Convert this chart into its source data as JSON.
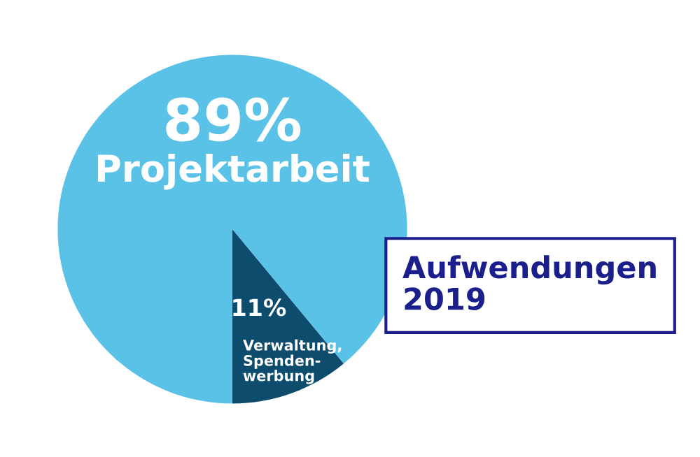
{
  "chart_data": {
    "type": "pie",
    "title": "Aufwendungen\n2019",
    "categories": [
      "Verwaltung,\nSpenden-\nwerbung",
      "Projektarbeit"
    ],
    "values": [
      11,
      89
    ],
    "colors": [
      "#0e4c6e",
      "#5bc2e7"
    ],
    "value_labels": [
      "11%",
      "89%"
    ],
    "legend": false
  }
}
